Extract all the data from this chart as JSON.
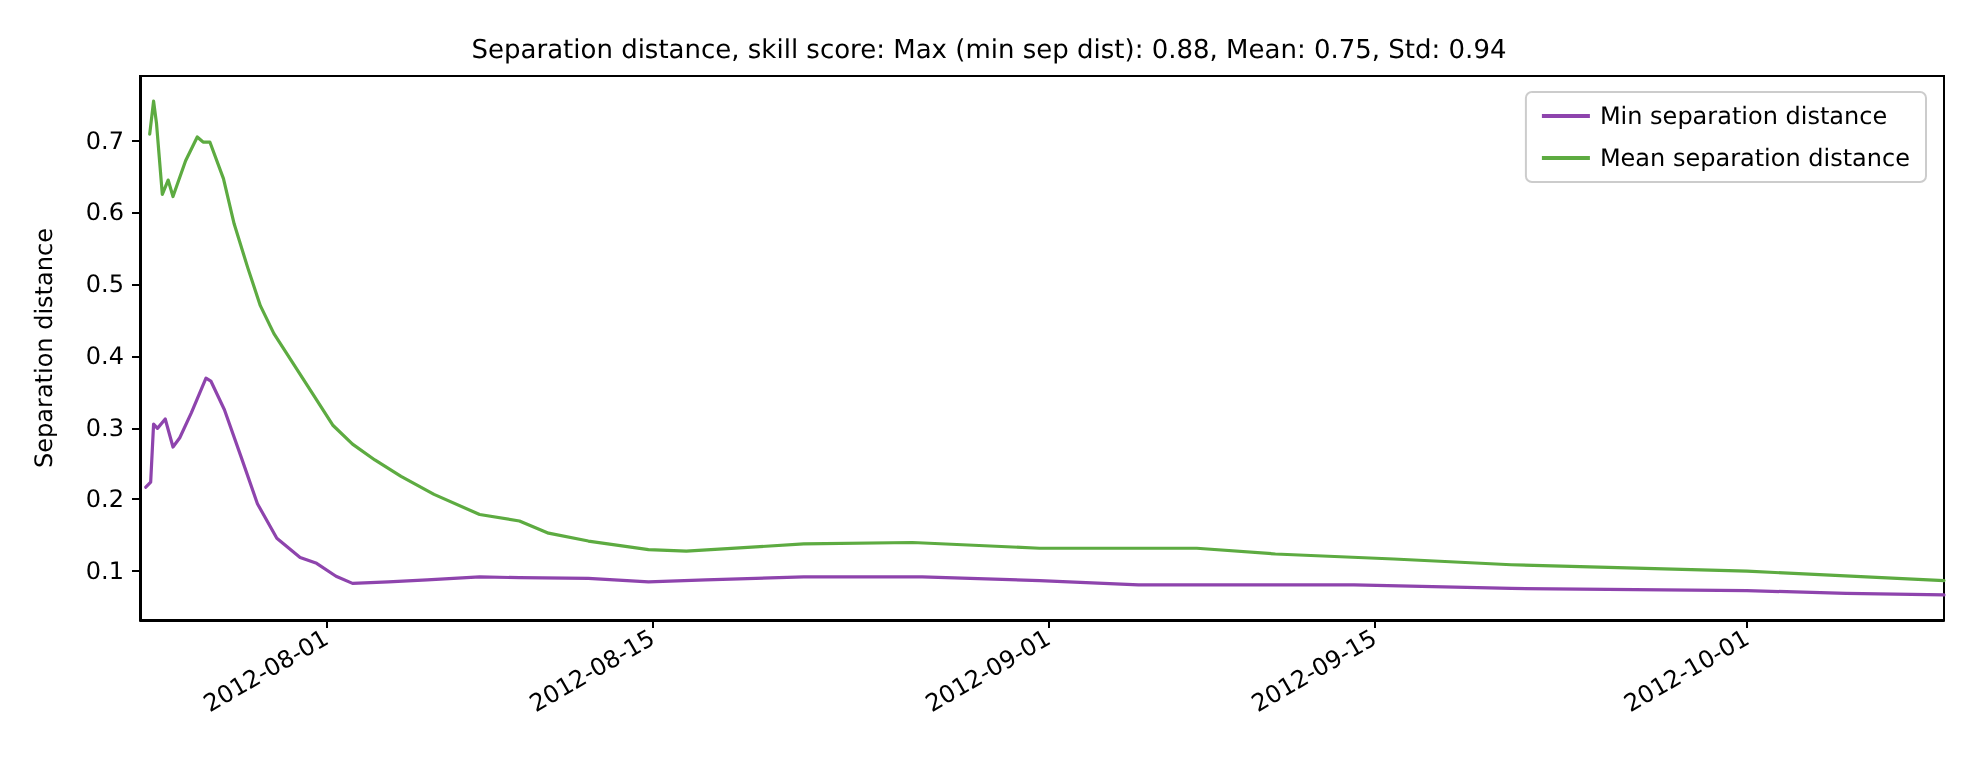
{
  "chart_data": {
    "type": "line",
    "title": "Separation distance, skill score: Max (min sep dist): 0.88, Mean: 0.75, Std: 0.94",
    "ylabel": "Separation distance",
    "xlim": [
      "2012-07-24T00:00",
      "2012-10-09T11:00"
    ],
    "ylim": [
      0.032,
      0.79
    ],
    "xticks": [
      "2012-08-01",
      "2012-08-15",
      "2012-09-01",
      "2012-09-15",
      "2012-10-01"
    ],
    "yticks": [
      0.1,
      0.2,
      0.3,
      0.4,
      0.5,
      0.6,
      0.7
    ],
    "grid": false,
    "legend": "top right",
    "marker": "none",
    "line_style": "solid",
    "series": [
      {
        "name": "Min separation distance",
        "color": "#8e44ad",
        "x": [
          "2012-07-24T06:00",
          "2012-07-24T11:00",
          "2012-07-24T14:00",
          "2012-07-24T18:00",
          "2012-07-25T02:00",
          "2012-07-25T10:00",
          "2012-07-25T17:00",
          "2012-07-26T05:00",
          "2012-07-26T20:00",
          "2012-07-27T01:00",
          "2012-07-27T15:00",
          "2012-07-28T08:00",
          "2012-07-29T01:00",
          "2012-07-29T21:00",
          "2012-07-30T21:00",
          "2012-07-31T14:00",
          "2012-08-01T10:00",
          "2012-08-02T03:00",
          "2012-08-03T16:00",
          "2012-08-05T08:00",
          "2012-08-07T14:00",
          "2012-08-09T07:00",
          "2012-08-12T06:00",
          "2012-08-14T20:00",
          "2012-08-17T07:00",
          "2012-08-21T12:00",
          "2012-08-26T14:00",
          "2012-08-31T15:00",
          "2012-09-04T21:00",
          "2012-09-14T03:00",
          "2012-09-20T21:00",
          "2012-10-01T00:00",
          "2012-10-05T06:00",
          "2012-10-09T11:00"
        ],
        "values": [
          0.217,
          0.224,
          0.305,
          0.299,
          0.312,
          0.273,
          0.286,
          0.321,
          0.369,
          0.365,
          0.325,
          0.26,
          0.194,
          0.146,
          0.119,
          0.111,
          0.093,
          0.083,
          0.085,
          0.088,
          0.092,
          0.091,
          0.09,
          0.085,
          0.088,
          0.092,
          0.092,
          0.087,
          0.081,
          0.081,
          0.076,
          0.073,
          0.069,
          0.067
        ]
      },
      {
        "name": "Mean separation distance",
        "color": "#5dab41",
        "x": [
          "2012-07-24T10:00",
          "2012-07-24T14:00",
          "2012-07-24T17:00",
          "2012-07-24T23:00",
          "2012-07-25T05:00",
          "2012-07-25T10:00",
          "2012-07-25T23:00",
          "2012-07-26T11:00",
          "2012-07-26T17:00",
          "2012-07-27T00:00",
          "2012-07-27T14:00",
          "2012-07-28T01:00",
          "2012-07-28T15:00",
          "2012-07-29T04:00",
          "2012-07-29T18:00",
          "2012-07-31T10:00",
          "2012-08-01T07:00",
          "2012-08-02T03:00",
          "2012-08-03T02:00",
          "2012-08-04T05:00",
          "2012-08-05T15:00",
          "2012-08-07T14:00",
          "2012-08-09T07:00",
          "2012-08-10T13:00",
          "2012-08-12T06:00",
          "2012-08-14T20:00",
          "2012-08-16T11:00",
          "2012-08-21T12:00",
          "2012-08-26T04:00",
          "2012-08-31T15:00",
          "2012-09-07T09:00",
          "2012-09-10T18:00",
          "2012-09-15T20:00",
          "2012-09-20T21:00",
          "2012-09-24T06:00",
          "2012-10-01T00:00",
          "2012-10-09T11:00"
        ],
        "values": [
          0.709,
          0.755,
          0.724,
          0.625,
          0.645,
          0.622,
          0.672,
          0.705,
          0.698,
          0.698,
          0.647,
          0.584,
          0.523,
          0.47,
          0.431,
          0.347,
          0.303,
          0.277,
          0.255,
          0.232,
          0.207,
          0.179,
          0.17,
          0.153,
          0.142,
          0.13,
          0.128,
          0.138,
          0.14,
          0.132,
          0.132,
          0.124,
          0.117,
          0.109,
          0.106,
          0.1,
          0.087
        ]
      }
    ]
  }
}
